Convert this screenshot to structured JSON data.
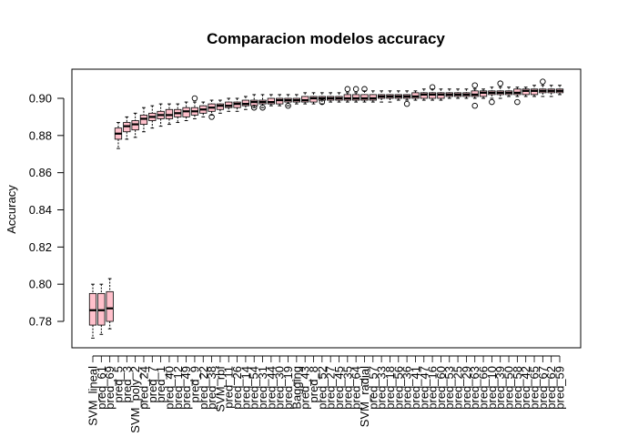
{
  "chart_data": {
    "type": "boxplot",
    "title": "Comparacion modelos accuracy",
    "xlabel": "",
    "ylabel": "Accuracy",
    "ylim": [
      0.77,
      0.91
    ],
    "yticks": [
      "0.78",
      "0.80",
      "0.82",
      "0.84",
      "0.86",
      "0.88",
      "0.90"
    ],
    "box_color": "#ffc0cb",
    "grid": false,
    "categories": [
      "SVM_lineal",
      "pred_61",
      "pred_69",
      "pred_5",
      "pred_3",
      "SVM_poly_2",
      "pred_24",
      "pred_7",
      "pred_1",
      "pred_40",
      "pred_12",
      "pred_49",
      "pred_9",
      "pred_22",
      "pred_38",
      "SVM_rbf",
      "pred_11",
      "pred_26",
      "pred_14",
      "pred_54",
      "pred_31",
      "pred_44",
      "pred_30",
      "pred_19",
      "Bagging",
      "pred_43",
      "pred_8",
      "pred_52",
      "pred_27",
      "pred_45",
      "pred_35",
      "pred_64",
      "SVM_radial",
      "pred_57",
      "pred_33",
      "pred_18",
      "pred_56",
      "pred_36",
      "pred_41",
      "pred_47",
      "pred_16",
      "pred_60",
      "pred_53",
      "pred_25",
      "pred_29",
      "pred_63",
      "pred_66",
      "pred_10",
      "pred_39",
      "pred_50",
      "pred_58",
      "pred_42",
      "pred_65",
      "pred_67",
      "pred_62",
      "pred_59"
    ],
    "boxes": [
      {
        "min": 0.771,
        "q1": 0.778,
        "median": 0.786,
        "q3": 0.795,
        "max": 0.8
      },
      {
        "min": 0.773,
        "q1": 0.778,
        "median": 0.786,
        "q3": 0.795,
        "max": 0.8
      },
      {
        "min": 0.776,
        "q1": 0.78,
        "median": 0.787,
        "q3": 0.796,
        "max": 0.803
      },
      {
        "min": 0.873,
        "q1": 0.878,
        "median": 0.881,
        "q3": 0.884,
        "max": 0.887
      },
      {
        "min": 0.878,
        "q1": 0.882,
        "median": 0.885,
        "q3": 0.887,
        "max": 0.89
      },
      {
        "min": 0.879,
        "q1": 0.883,
        "median": 0.886,
        "q3": 0.888,
        "max": 0.892
      },
      {
        "min": 0.882,
        "q1": 0.886,
        "median": 0.889,
        "q3": 0.891,
        "max": 0.895
      },
      {
        "min": 0.884,
        "q1": 0.888,
        "median": 0.89,
        "q3": 0.892,
        "max": 0.896
      },
      {
        "min": 0.885,
        "q1": 0.889,
        "median": 0.891,
        "q3": 0.893,
        "max": 0.897
      },
      {
        "min": 0.886,
        "q1": 0.889,
        "median": 0.891,
        "q3": 0.894,
        "max": 0.897
      },
      {
        "min": 0.887,
        "q1": 0.89,
        "median": 0.892,
        "q3": 0.894,
        "max": 0.897
      },
      {
        "min": 0.888,
        "q1": 0.89,
        "median": 0.893,
        "q3": 0.895,
        "max": 0.898
      },
      {
        "min": 0.889,
        "q1": 0.891,
        "median": 0.893,
        "q3": 0.895,
        "max": 0.898,
        "outliers": [
          0.9
        ]
      },
      {
        "min": 0.89,
        "q1": 0.892,
        "median": 0.894,
        "q3": 0.896,
        "max": 0.898
      },
      {
        "min": 0.891,
        "q1": 0.893,
        "median": 0.895,
        "q3": 0.897,
        "max": 0.899,
        "outliers": [
          0.89
        ]
      },
      {
        "min": 0.892,
        "q1": 0.894,
        "median": 0.896,
        "q3": 0.897,
        "max": 0.899
      },
      {
        "min": 0.893,
        "q1": 0.895,
        "median": 0.896,
        "q3": 0.898,
        "max": 0.9
      },
      {
        "min": 0.893,
        "q1": 0.895,
        "median": 0.897,
        "q3": 0.898,
        "max": 0.9
      },
      {
        "min": 0.894,
        "q1": 0.896,
        "median": 0.897,
        "q3": 0.899,
        "max": 0.901
      },
      {
        "min": 0.895,
        "q1": 0.896,
        "median": 0.898,
        "q3": 0.899,
        "max": 0.902,
        "outliers": [
          0.895
        ]
      },
      {
        "min": 0.895,
        "q1": 0.897,
        "median": 0.898,
        "q3": 0.899,
        "max": 0.902,
        "outliers": [
          0.895
        ]
      },
      {
        "min": 0.896,
        "q1": 0.897,
        "median": 0.898,
        "q3": 0.9,
        "max": 0.902
      },
      {
        "min": 0.896,
        "q1": 0.897,
        "median": 0.899,
        "q3": 0.9,
        "max": 0.902
      },
      {
        "min": 0.896,
        "q1": 0.898,
        "median": 0.899,
        "q3": 0.9,
        "max": 0.902,
        "outliers": [
          0.896
        ]
      },
      {
        "min": 0.897,
        "q1": 0.898,
        "median": 0.899,
        "q3": 0.9,
        "max": 0.902
      },
      {
        "min": 0.897,
        "q1": 0.898,
        "median": 0.899,
        "q3": 0.901,
        "max": 0.903
      },
      {
        "min": 0.897,
        "q1": 0.898,
        "median": 0.9,
        "q3": 0.901,
        "max": 0.903
      },
      {
        "min": 0.897,
        "q1": 0.899,
        "median": 0.9,
        "q3": 0.901,
        "max": 0.903,
        "outliers": [
          0.898
        ]
      },
      {
        "min": 0.898,
        "q1": 0.899,
        "median": 0.9,
        "q3": 0.901,
        "max": 0.903
      },
      {
        "min": 0.898,
        "q1": 0.899,
        "median": 0.9,
        "q3": 0.901,
        "max": 0.903
      },
      {
        "min": 0.898,
        "q1": 0.899,
        "median": 0.9,
        "q3": 0.902,
        "max": 0.903,
        "outliers": [
          0.905
        ]
      },
      {
        "min": 0.898,
        "q1": 0.899,
        "median": 0.9,
        "q3": 0.902,
        "max": 0.903,
        "outliers": [
          0.905
        ]
      },
      {
        "min": 0.898,
        "q1": 0.899,
        "median": 0.9,
        "q3": 0.902,
        "max": 0.904,
        "outliers": [
          0.905
        ]
      },
      {
        "min": 0.898,
        "q1": 0.899,
        "median": 0.9,
        "q3": 0.902,
        "max": 0.904
      },
      {
        "min": 0.898,
        "q1": 0.9,
        "median": 0.901,
        "q3": 0.902,
        "max": 0.904
      },
      {
        "min": 0.898,
        "q1": 0.9,
        "median": 0.901,
        "q3": 0.902,
        "max": 0.904
      },
      {
        "min": 0.899,
        "q1": 0.9,
        "median": 0.901,
        "q3": 0.902,
        "max": 0.904
      },
      {
        "min": 0.899,
        "q1": 0.9,
        "median": 0.901,
        "q3": 0.902,
        "max": 0.904,
        "outliers": [
          0.897
        ]
      },
      {
        "min": 0.899,
        "q1": 0.9,
        "median": 0.901,
        "q3": 0.903,
        "max": 0.904
      },
      {
        "min": 0.899,
        "q1": 0.9,
        "median": 0.902,
        "q3": 0.903,
        "max": 0.905
      },
      {
        "min": 0.899,
        "q1": 0.9,
        "median": 0.902,
        "q3": 0.903,
        "max": 0.905,
        "outliers": [
          0.906
        ]
      },
      {
        "min": 0.899,
        "q1": 0.9,
        "median": 0.902,
        "q3": 0.903,
        "max": 0.905
      },
      {
        "min": 0.9,
        "q1": 0.901,
        "median": 0.902,
        "q3": 0.903,
        "max": 0.905
      },
      {
        "min": 0.9,
        "q1": 0.901,
        "median": 0.902,
        "q3": 0.903,
        "max": 0.905
      },
      {
        "min": 0.9,
        "q1": 0.901,
        "median": 0.902,
        "q3": 0.903,
        "max": 0.905
      },
      {
        "min": 0.9,
        "q1": 0.901,
        "median": 0.902,
        "q3": 0.904,
        "max": 0.905,
        "outliers": [
          0.896,
          0.907
        ]
      },
      {
        "min": 0.9,
        "q1": 0.901,
        "median": 0.903,
        "q3": 0.904,
        "max": 0.905
      },
      {
        "min": 0.9,
        "q1": 0.902,
        "median": 0.903,
        "q3": 0.904,
        "max": 0.906,
        "outliers": [
          0.898
        ]
      },
      {
        "min": 0.9,
        "q1": 0.902,
        "median": 0.903,
        "q3": 0.904,
        "max": 0.906,
        "outliers": [
          0.908
        ]
      },
      {
        "min": 0.901,
        "q1": 0.902,
        "median": 0.903,
        "q3": 0.904,
        "max": 0.906
      },
      {
        "min": 0.901,
        "q1": 0.902,
        "median": 0.903,
        "q3": 0.905,
        "max": 0.906,
        "outliers": [
          0.898
        ]
      },
      {
        "min": 0.901,
        "q1": 0.902,
        "median": 0.904,
        "q3": 0.905,
        "max": 0.906
      },
      {
        "min": 0.901,
        "q1": 0.902,
        "median": 0.904,
        "q3": 0.905,
        "max": 0.907
      },
      {
        "min": 0.901,
        "q1": 0.903,
        "median": 0.904,
        "q3": 0.905,
        "max": 0.907,
        "outliers": [
          0.909
        ]
      },
      {
        "min": 0.901,
        "q1": 0.903,
        "median": 0.904,
        "q3": 0.905,
        "max": 0.907
      },
      {
        "min": 0.902,
        "q1": 0.903,
        "median": 0.904,
        "q3": 0.905,
        "max": 0.907
      }
    ]
  }
}
